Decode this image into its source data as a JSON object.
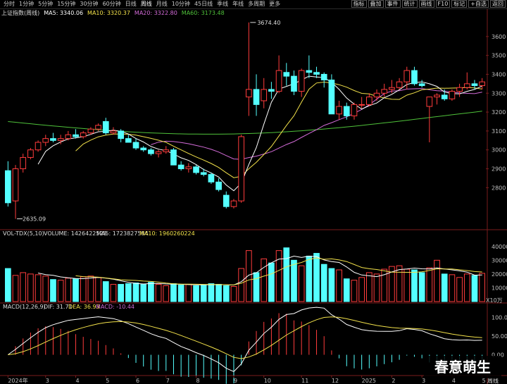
{
  "periods": [
    "分时",
    "1分钟",
    "5分钟",
    "15分钟",
    "30分钟",
    "60分钟",
    "日线",
    "周线",
    "月线",
    "10分钟",
    "45日线",
    "季线",
    "年线",
    "多周期",
    "更多"
  ],
  "active_period": "周线",
  "toolbar": [
    "指标",
    "叠加",
    "事件",
    "统计",
    "画线",
    "F10",
    "标记",
    "+自选",
    "返回"
  ],
  "title": "上证指数(周线)",
  "ma_labels": [
    {
      "text": "MA5: 3340.06",
      "color": "#ffffff"
    },
    {
      "text": "MA10: 3320.37",
      "color": "#f2e14a"
    },
    {
      "text": "MA20: 3322.80",
      "color": "#d36bd8"
    },
    {
      "text": "MA60: 3173.48",
      "color": "#4fc23a"
    }
  ],
  "price_axis": [
    "3600",
    "3500",
    "3400",
    "3300",
    "3200",
    "3100",
    "3000",
    "2900",
    "2800"
  ],
  "high_annotation": "3674.40",
  "low_annotation": "2635.09",
  "vol_header": {
    "name": "VOL-TDX(5,10)",
    "volume": "VOLUME: 1426422528",
    "ma5": "MA5: 1723827584",
    "ma10": "MA10: 1960260224"
  },
  "vol_axis": [
    "40000",
    "30000",
    "20000",
    "10000"
  ],
  "vol_unit": "X10万",
  "macd_header": {
    "name": "MACD(12,26,9)",
    "dif": "DIF: 31.71",
    "dea": "DEA: 36.93",
    "macd": "MACD: -10.44"
  },
  "macd_axis": [
    "100.0",
    "50.00",
    "0.00"
  ],
  "date_labels": [
    "2024年",
    "3",
    "4",
    "5",
    "6",
    "7",
    "8",
    "9",
    "10",
    "11",
    "12",
    "2025",
    "2",
    "3",
    "4",
    "5"
  ],
  "watermark": "春意萌生",
  "bottom_right": "周线",
  "colors": {
    "up": "#ff3c3c",
    "down": "#54ffff",
    "ma5": "#ffffff",
    "ma10": "#f2e14a",
    "ma20": "#d36bd8",
    "ma60": "#4fc23a"
  },
  "chart_data": {
    "type": "candlestick",
    "ohlc": [
      [
        2890,
        2940,
        2700,
        2720
      ],
      [
        2730,
        2920,
        2635.09,
        2900
      ],
      [
        2900,
        2980,
        2880,
        2960
      ],
      [
        2960,
        3010,
        2950,
        3000
      ],
      [
        3000,
        3050,
        2990,
        3040
      ],
      [
        3040,
        3080,
        3020,
        3060
      ],
      [
        3060,
        3090,
        3040,
        3050
      ],
      [
        3050,
        3080,
        3030,
        3060
      ],
      [
        3060,
        3100,
        3050,
        3080
      ],
      [
        3080,
        3110,
        3060,
        3070
      ],
      [
        3070,
        3100,
        3060,
        3090
      ],
      [
        3090,
        3120,
        3080,
        3110
      ],
      [
        3110,
        3140,
        3100,
        3130
      ],
      [
        3150,
        3170,
        3080,
        3090
      ],
      [
        3090,
        3120,
        3080,
        3100
      ],
      [
        3100,
        3110,
        3040,
        3060
      ],
      [
        3060,
        3080,
        3040,
        3040
      ],
      [
        3040,
        3060,
        3000,
        3010
      ],
      [
        3010,
        3020,
        2990,
        3000
      ],
      [
        3000,
        3010,
        2970,
        2980
      ],
      [
        2980,
        3000,
        2960,
        2990
      ],
      [
        2990,
        3020,
        2980,
        3000
      ],
      [
        3000,
        3010,
        2920,
        2920
      ],
      [
        2920,
        2940,
        2890,
        2900
      ],
      [
        2900,
        2930,
        2880,
        2910
      ],
      [
        2910,
        2920,
        2870,
        2880
      ],
      [
        2880,
        2900,
        2860,
        2870
      ],
      [
        2870,
        2880,
        2820,
        2830
      ],
      [
        2830,
        2850,
        2780,
        2790
      ],
      [
        2760,
        2780,
        2690,
        2700
      ],
      [
        2700,
        2740,
        2690,
        2730
      ],
      [
        2730,
        3080,
        2720,
        3070
      ],
      [
        3280,
        3674.4,
        3180,
        3320
      ],
      [
        3320,
        3400,
        3180,
        3240
      ],
      [
        3260,
        3380,
        3220,
        3320
      ],
      [
        3320,
        3360,
        3270,
        3310
      ],
      [
        3310,
        3500,
        3300,
        3420
      ],
      [
        3410,
        3460,
        3340,
        3390
      ],
      [
        3390,
        3420,
        3290,
        3310
      ],
      [
        3310,
        3430,
        3280,
        3420
      ],
      [
        3420,
        3500,
        3380,
        3410
      ],
      [
        3410,
        3440,
        3380,
        3400
      ],
      [
        3400,
        3410,
        3330,
        3370
      ],
      [
        3370,
        3400,
        3190,
        3190
      ],
      [
        3190,
        3260,
        3160,
        3230
      ],
      [
        3230,
        3250,
        3160,
        3180
      ],
      [
        3180,
        3250,
        3160,
        3240
      ],
      [
        3240,
        3280,
        3220,
        3240
      ],
      [
        3240,
        3300,
        3230,
        3280
      ],
      [
        3280,
        3320,
        3260,
        3300
      ],
      [
        3300,
        3350,
        3280,
        3320
      ],
      [
        3320,
        3370,
        3300,
        3330
      ],
      [
        3330,
        3380,
        3320,
        3360
      ],
      [
        3360,
        3440,
        3320,
        3420
      ],
      [
        3420,
        3440,
        3340,
        3350
      ],
      [
        3350,
        3370,
        3330,
        3340
      ],
      [
        3230,
        3280,
        3040,
        3280
      ],
      [
        3280,
        3300,
        3240,
        3290
      ],
      [
        3290,
        3320,
        3260,
        3270
      ],
      [
        3270,
        3320,
        3260,
        3310
      ],
      [
        3310,
        3350,
        3280,
        3330
      ],
      [
        3330,
        3410,
        3320,
        3350
      ],
      [
        3350,
        3370,
        3320,
        3340
      ],
      [
        3340,
        3380,
        3320,
        3360
      ]
    ],
    "volume": [
      24000,
      19000,
      21000,
      20000,
      19500,
      18500,
      16000,
      15500,
      17000,
      16500,
      18000,
      18500,
      17500,
      14500,
      12500,
      12500,
      13000,
      13500,
      12500,
      14000,
      12500,
      11500,
      13000,
      12000,
      12500,
      11500,
      12000,
      13000,
      12500,
      11500,
      11000,
      24000,
      37000,
      21000,
      31000,
      28000,
      37000,
      39000,
      30000,
      26000,
      33000,
      35000,
      27000,
      24000,
      23000,
      16500,
      15500,
      17500,
      21000,
      20000,
      23500,
      25500,
      26000,
      23500,
      23000,
      21000,
      24500,
      30000,
      20000,
      19500,
      17500,
      20000,
      19000,
      20500
    ],
    "ma_last": {
      "ma5": 3340.06,
      "ma10": 3320.37,
      "ma20": 3322.8,
      "ma60": 3173.48
    }
  }
}
